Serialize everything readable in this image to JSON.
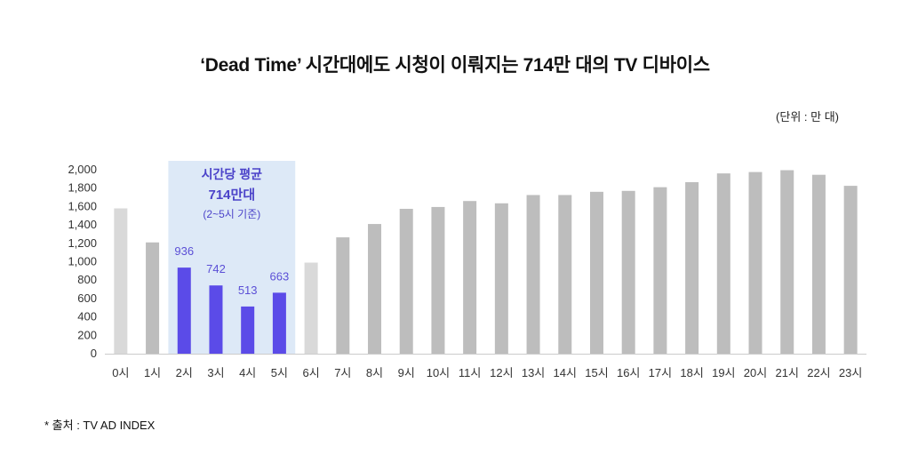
{
  "title": "‘Dead Time’ 시간대에도 시청이 이뤄지는 714만 대의 TV 디바이스",
  "unit_label": "(단위 : 만 대)",
  "source": "* 출처 : TV AD INDEX",
  "highlight": {
    "title": "시간당 평균",
    "value": "714만대",
    "note": "(2~5시 기준)",
    "range": [
      "2시",
      "5시"
    ]
  },
  "colors": {
    "default_bar": "#bdbdbd",
    "light_bar": "#d9d9d9",
    "highlight_bar": "#5b4be8",
    "highlight_box": "#dde9f7",
    "axis": "#cccccc"
  },
  "chart_data": {
    "type": "bar",
    "ylim": [
      0,
      2000
    ],
    "yticks": [
      0,
      200,
      400,
      600,
      800,
      1000,
      1200,
      1400,
      1600,
      1800,
      2000
    ],
    "ytick_labels": [
      "0",
      "200",
      "400",
      "600",
      "800",
      "1,000",
      "1,200",
      "1,400",
      "1,600",
      "1,800",
      "2,000"
    ],
    "categories": [
      "0시",
      "1시",
      "2시",
      "3시",
      "4시",
      "5시",
      "6시",
      "7시",
      "8시",
      "9시",
      "10시",
      "11시",
      "12시",
      "13시",
      "14시",
      "15시",
      "16시",
      "17시",
      "18시",
      "19시",
      "20시",
      "21시",
      "22시",
      "23시"
    ],
    "values": [
      1580,
      1210,
      936,
      742,
      513,
      663,
      990,
      1265,
      1410,
      1575,
      1595,
      1660,
      1635,
      1725,
      1725,
      1760,
      1770,
      1810,
      1865,
      1960,
      1975,
      1995,
      1945,
      1825
    ],
    "bar_styles": [
      "light",
      "default",
      "highlight",
      "highlight",
      "highlight",
      "highlight",
      "light",
      "default",
      "default",
      "default",
      "default",
      "default",
      "default",
      "default",
      "default",
      "default",
      "default",
      "default",
      "default",
      "default",
      "default",
      "default",
      "default",
      "default"
    ],
    "data_labels": {
      "2": "936",
      "3": "742",
      "4": "513",
      "5": "663"
    }
  }
}
